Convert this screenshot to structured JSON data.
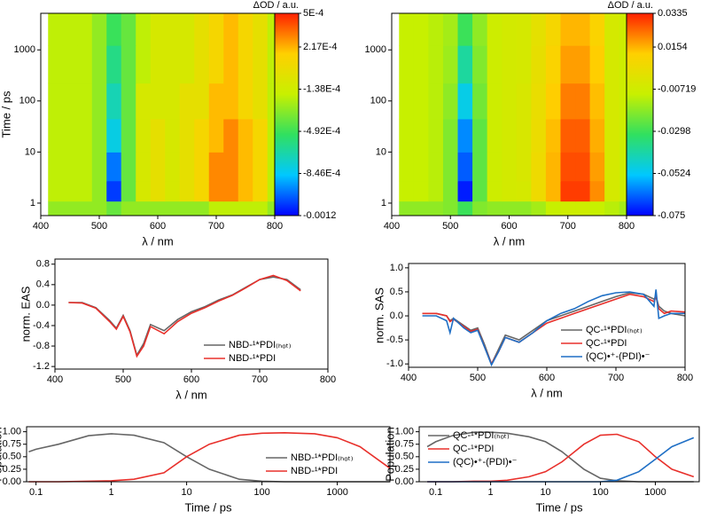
{
  "chart_data": [
    {
      "type": "heatmap",
      "cbar_label": "ΔOD / a.u.",
      "x_label": "λ / nm",
      "y_label": "Time / ps",
      "xlim": [
        400,
        800
      ],
      "xticks": [
        400,
        500,
        600,
        700,
        800
      ],
      "ylim": [
        0.57,
        5200
      ],
      "ylog": true,
      "yticks": [
        1,
        10,
        100,
        1000
      ],
      "x": [
        425,
        450,
        475,
        500,
        525,
        550,
        575,
        600,
        625,
        650,
        675,
        700,
        725,
        750,
        775,
        800
      ],
      "y": [
        0.8,
        1.5,
        5,
        20,
        100,
        500,
        3000
      ],
      "z": [
        [
          -0.0003,
          -0.0003,
          -0.0003,
          -0.0003,
          -0.0004,
          -0.0003,
          -0.0003,
          -0.0003,
          -0.0003,
          -0.0003,
          -0.0003,
          -0.0002,
          -0.0002,
          -0.0002,
          -0.0002,
          -0.0003
        ],
        [
          -0.0002,
          -0.0002,
          -0.0002,
          -0.0003,
          -0.0011,
          -0.0004,
          -0.0001,
          0,
          -0.0001,
          0,
          0.0001,
          0.0003,
          0.0003,
          0.0002,
          0.0001,
          -0.0002
        ],
        [
          -0.0002,
          -0.0002,
          -0.0002,
          -0.0003,
          -0.001,
          -0.0004,
          -0.0001,
          0,
          -0.0001,
          0,
          0.0001,
          0.0003,
          0.0003,
          0.0002,
          0.0001,
          -0.0002
        ],
        [
          -0.0002,
          -0.0002,
          -0.0002,
          -0.0003,
          -0.0008,
          -0.0004,
          -0.0001,
          0,
          -0.0001,
          0,
          0.0001,
          0.0002,
          0.0003,
          0.0002,
          0.0001,
          -0.0002
        ],
        [
          -0.0002,
          -0.0002,
          -0.0002,
          -0.0003,
          -0.0007,
          -0.0004,
          -0.0001,
          -0.0001,
          -0.0001,
          0,
          0,
          0.0002,
          0.0002,
          0.0001,
          0,
          -0.0002
        ],
        [
          -0.0002,
          -0.0002,
          -0.0002,
          -0.0003,
          -0.0006,
          -0.0004,
          -0.0002,
          -0.0001,
          -0.0001,
          -0.0001,
          0,
          0.0001,
          0.0002,
          0.0001,
          0,
          -0.0002
        ],
        [
          -0.0002,
          -0.0002,
          -0.0002,
          -0.0003,
          -0.0005,
          -0.0004,
          -0.0002,
          -0.0001,
          -0.0001,
          -0.0001,
          0,
          0.0001,
          0.0002,
          0.0001,
          0,
          -0.0002
        ]
      ],
      "zlim": [
        -0.0012,
        0.0005
      ],
      "zticks": [
        {
          "value": 0.0005,
          "label": "5E-4"
        },
        {
          "value": 0.000217,
          "label": "2.17E-4"
        },
        {
          "value": -0.000138,
          "label": "-1.38E-4"
        },
        {
          "value": -0.000492,
          "label": "-4.92E-4"
        },
        {
          "value": -0.000846,
          "label": "-8.46E-4"
        },
        -0.0012
      ],
      "colormap": [
        "#0000ff",
        "#00c8ff",
        "#30e060",
        "#c8f000",
        "#ffd000",
        "#ff2000"
      ]
    },
    {
      "type": "heatmap",
      "cbar_label": "ΔOD / a.u.",
      "x_label": "λ / nm",
      "xlim": [
        400,
        800
      ],
      "xticks": [
        400,
        500,
        600,
        700,
        800
      ],
      "ylim": [
        0.57,
        5200
      ],
      "ylog": true,
      "yticks": [
        1,
        10,
        100,
        1000
      ],
      "x": [
        425,
        450,
        475,
        500,
        525,
        550,
        575,
        600,
        625,
        650,
        675,
        700,
        725,
        750,
        775,
        800
      ],
      "y": [
        0.8,
        1.5,
        5,
        20,
        100,
        500,
        3000
      ],
      "z": [
        [
          -0.018,
          -0.018,
          -0.018,
          -0.02,
          -0.03,
          -0.02,
          -0.018,
          -0.018,
          -0.018,
          -0.015,
          -0.01,
          -0.008,
          -0.008,
          -0.01,
          -0.012,
          -0.015
        ],
        [
          -0.01,
          -0.01,
          -0.012,
          -0.02,
          -0.072,
          -0.025,
          -0.008,
          -0.006,
          -0.005,
          0.005,
          0.015,
          0.03,
          0.03,
          0.02,
          -0.005,
          -0.008
        ],
        [
          -0.01,
          -0.01,
          -0.012,
          -0.02,
          -0.065,
          -0.025,
          -0.008,
          -0.006,
          -0.004,
          0.005,
          0.015,
          0.028,
          0.028,
          0.018,
          -0.005,
          -0.008
        ],
        [
          -0.01,
          -0.01,
          -0.012,
          -0.02,
          -0.06,
          -0.025,
          -0.008,
          -0.006,
          -0.004,
          0.004,
          0.014,
          0.026,
          0.026,
          0.016,
          -0.005,
          -0.008
        ],
        [
          -0.01,
          -0.01,
          -0.012,
          -0.018,
          -0.05,
          -0.022,
          -0.008,
          -0.006,
          -0.004,
          0.003,
          0.012,
          0.022,
          0.022,
          0.014,
          -0.005,
          -0.008
        ],
        [
          -0.01,
          -0.01,
          -0.012,
          -0.016,
          -0.04,
          -0.02,
          -0.008,
          -0.006,
          -0.005,
          0.002,
          0.01,
          0.018,
          0.018,
          0.012,
          -0.005,
          -0.008
        ],
        [
          -0.01,
          -0.01,
          -0.012,
          -0.015,
          -0.03,
          -0.018,
          -0.008,
          -0.006,
          -0.005,
          0.001,
          0.008,
          0.015,
          0.015,
          0.01,
          -0.005,
          -0.008
        ]
      ],
      "zlim": [
        -0.075,
        0.0335
      ],
      "zticks": [
        0.0335,
        0.0154,
        -0.00719,
        -0.0298,
        -0.0524,
        -0.075
      ],
      "colormap": [
        "#0000ff",
        "#00c8ff",
        "#30e060",
        "#c8f000",
        "#ffd000",
        "#ff2000"
      ]
    },
    {
      "type": "line",
      "x_label": "λ / nm",
      "y_label": "norm. EAS",
      "legend": "lower right",
      "xlim": [
        400,
        800
      ],
      "xticks": [
        400,
        500,
        600,
        700,
        800
      ],
      "ylim": [
        -1.25,
        0.9
      ],
      "yticks": [
        0.8,
        0.4,
        {
          "value": 0,
          "label": "0.0"
        },
        -0.4,
        -0.8,
        -1.2
      ],
      "x": [
        420,
        440,
        460,
        480,
        490,
        500,
        510,
        520,
        530,
        540,
        560,
        580,
        600,
        620,
        640,
        660,
        680,
        700,
        720,
        740,
        760
      ],
      "series": [
        {
          "name": "NBD-¹*PDI₍ₕₒₜ₎",
          "color": "#666666",
          "values": [
            0.05,
            0.05,
            -0.05,
            -0.3,
            -0.45,
            -0.2,
            -0.5,
            -0.98,
            -0.75,
            -0.38,
            -0.5,
            -0.28,
            -0.13,
            -0.03,
            0.1,
            0.2,
            0.35,
            0.5,
            0.55,
            0.5,
            0.3
          ]
        },
        {
          "name": "NBD-¹*PDI",
          "color": "#e8302b",
          "values": [
            0.05,
            0.04,
            -0.06,
            -0.32,
            -0.47,
            -0.22,
            -0.52,
            -1.0,
            -0.8,
            -0.42,
            -0.56,
            -0.32,
            -0.16,
            -0.05,
            0.08,
            0.19,
            0.34,
            0.5,
            0.58,
            0.48,
            0.28
          ]
        }
      ]
    },
    {
      "type": "line",
      "x_label": "λ / nm",
      "y_label": "norm. SAS",
      "legend": "lower right",
      "xlim": [
        400,
        800
      ],
      "xticks": [
        400,
        500,
        600,
        700,
        800
      ],
      "ylim": [
        -1.07,
        1.09
      ],
      "yticks": [
        {
          "value": 1,
          "label": "1.0"
        },
        0.5,
        {
          "value": 0,
          "label": "0.0"
        },
        -0.5,
        {
          "value": -1,
          "label": "-1.0"
        }
      ],
      "x": [
        420,
        440,
        455,
        460,
        465,
        480,
        490,
        500,
        510,
        520,
        530,
        540,
        560,
        580,
        600,
        620,
        640,
        660,
        680,
        700,
        720,
        740,
        755,
        758,
        762,
        770,
        780,
        800
      ],
      "series": [
        {
          "name": "QC-¹*PDI₍ₕₒₜ₎",
          "color": "#666666",
          "values": [
            0.05,
            0.05,
            0,
            -0.1,
            -0.05,
            -0.2,
            -0.3,
            -0.25,
            -0.6,
            -1.0,
            -0.7,
            -0.4,
            -0.5,
            -0.3,
            -0.1,
            0,
            0.1,
            0.2,
            0.3,
            0.4,
            0.48,
            0.45,
            0.35,
            0.4,
            0.2,
            0.1,
            0.05,
            0
          ]
        },
        {
          "name": "QC-¹*PDI",
          "color": "#e8302b",
          "values": [
            0.05,
            0.05,
            0,
            -0.12,
            -0.07,
            -0.22,
            -0.32,
            -0.28,
            -0.65,
            -1.0,
            -0.75,
            -0.45,
            -0.55,
            -0.35,
            -0.15,
            -0.05,
            0.05,
            0.15,
            0.25,
            0.35,
            0.45,
            0.4,
            0.3,
            0.4,
            0.15,
            0.05,
            0.1,
            0.08
          ]
        },
        {
          "name": "(QC)•⁺-(PDI)•⁻",
          "color": "#1f6fc5",
          "values": [
            0,
            0,
            -0.1,
            -0.35,
            -0.05,
            -0.25,
            -0.35,
            -0.3,
            -0.65,
            -1.02,
            -0.75,
            -0.45,
            -0.55,
            -0.35,
            -0.1,
            0.05,
            0.15,
            0.3,
            0.42,
            0.48,
            0.5,
            0.45,
            0.2,
            0.55,
            -0.05,
            0,
            0.05,
            0.05
          ]
        }
      ]
    },
    {
      "type": "line",
      "x_label": "Time / ps",
      "y_label": "Population",
      "legend": "lower right",
      "xlog": true,
      "xlim": [
        0.075,
        5000
      ],
      "xticks": [
        0.1,
        1,
        10,
        100,
        1000
      ],
      "ylim": [
        0,
        1.1
      ],
      "yticks": [
        {
          "value": 1,
          "label": "1.00"
        },
        0.75,
        {
          "value": 0.5,
          "label": "0.50"
        },
        0.25,
        {
          "value": 0,
          "label": "0.00"
        }
      ],
      "x": [
        0.08,
        0.1,
        0.2,
        0.5,
        1,
        2,
        5,
        10,
        20,
        50,
        100,
        200,
        500,
        1000,
        2000,
        5000
      ],
      "series": [
        {
          "name": "NBD-¹*PDI₍ₕₒₜ₎",
          "color": "#666666",
          "values": [
            0.6,
            0.65,
            0.75,
            0.92,
            0.96,
            0.93,
            0.78,
            0.5,
            0.25,
            0.05,
            0.01,
            0,
            0,
            0,
            0,
            0
          ]
        },
        {
          "name": "NBD-¹*PDI",
          "color": "#e8302b",
          "values": [
            0,
            0,
            0,
            0.01,
            0.02,
            0.05,
            0.18,
            0.5,
            0.75,
            0.93,
            0.97,
            0.98,
            0.96,
            0.88,
            0.7,
            0.27
          ]
        }
      ]
    },
    {
      "type": "line",
      "x_label": "Time / ps",
      "y_label": "Population",
      "legend": "upper left",
      "xlog": true,
      "xlim": [
        0.05,
        6300
      ],
      "xticks": [
        0.1,
        1,
        10,
        100,
        1000
      ],
      "ylim": [
        0,
        1.1
      ],
      "yticks": [
        {
          "value": 1,
          "label": "1.00"
        },
        0.75,
        {
          "value": 0.5,
          "label": "0.50"
        },
        0.25,
        {
          "value": 0,
          "label": "0.00"
        }
      ],
      "x": [
        0.07,
        0.1,
        0.2,
        0.5,
        1,
        2,
        5,
        10,
        20,
        50,
        100,
        200,
        500,
        1000,
        2000,
        5000
      ],
      "series": [
        {
          "name": "QC-¹*PDI₍ₕₒₜ₎",
          "color": "#666666",
          "values": [
            0.7,
            0.8,
            0.92,
            0.99,
            0.99,
            0.97,
            0.9,
            0.8,
            0.6,
            0.25,
            0.07,
            0.02,
            0,
            0,
            0,
            0
          ]
        },
        {
          "name": "QC-¹*PDI",
          "color": "#e8302b",
          "values": [
            0,
            0,
            0,
            0.01,
            0.01,
            0.03,
            0.1,
            0.2,
            0.4,
            0.75,
            0.93,
            0.95,
            0.8,
            0.5,
            0.25,
            0.1
          ]
        },
        {
          "name": "(QC)•⁺-(PDI)•⁻",
          "color": "#1f6fc5",
          "values": [
            0,
            0,
            0,
            0,
            0,
            0,
            0,
            0,
            0,
            0,
            0,
            0.03,
            0.2,
            0.45,
            0.7,
            0.88
          ]
        }
      ]
    }
  ]
}
